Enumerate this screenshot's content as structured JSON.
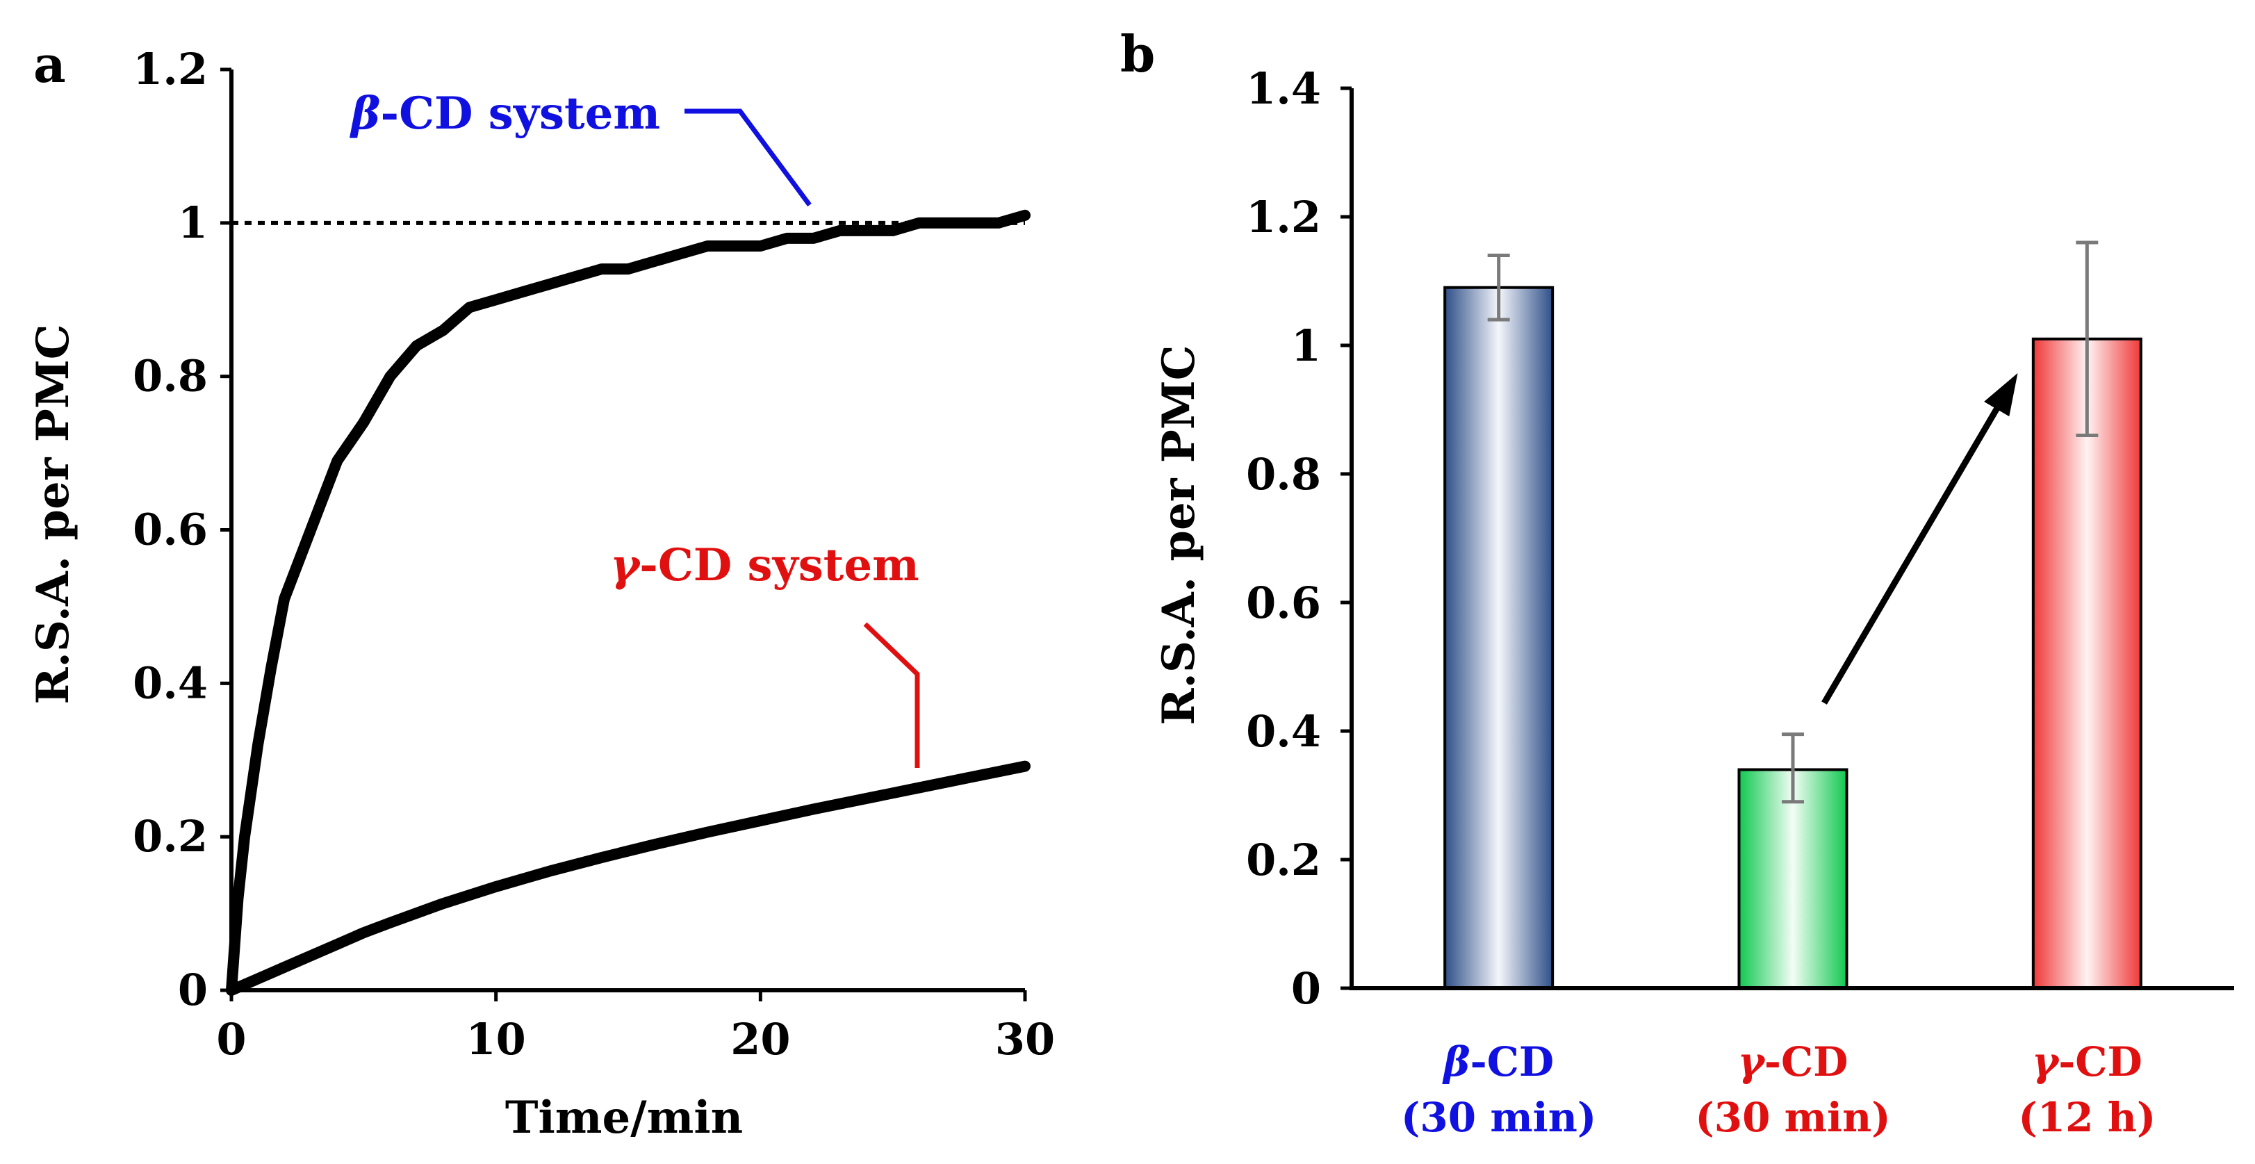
{
  "colors": {
    "blue": "#1010e0",
    "red": "#e01010",
    "black": "#000000",
    "bar_blue": "#2f4f88",
    "bar_green": "#10c850",
    "bar_red": "#f03838",
    "error_bar": "#7a7a7a"
  },
  "chart_data": [
    {
      "type": "line",
      "panel_label": "a",
      "xlabel": "Time/min",
      "ylabel": "R.S.A. per PMC",
      "xlim": [
        0,
        30
      ],
      "ylim": [
        0,
        1.2
      ],
      "x_ticks": [
        "0",
        "10",
        "20",
        "30"
      ],
      "y_ticks": [
        "0",
        "0.2",
        "0.4",
        "0.6",
        "0.8",
        "1",
        "1.2"
      ],
      "reference_line": {
        "y": 1,
        "style": "dotted"
      },
      "series": [
        {
          "name": "β-CD system",
          "label_prefix": "β",
          "label_suffix": "-CD system",
          "x": [
            0,
            0.25,
            0.5,
            1,
            1.5,
            2,
            3,
            4,
            5,
            6,
            7,
            8,
            9,
            10,
            11,
            12,
            13,
            14,
            15,
            16,
            17,
            18,
            19,
            20,
            21,
            22,
            23,
            24,
            25,
            26,
            27,
            28,
            29,
            30
          ],
          "y": [
            0,
            0.12,
            0.2,
            0.32,
            0.42,
            0.51,
            0.6,
            0.69,
            0.74,
            0.8,
            0.84,
            0.86,
            0.89,
            0.9,
            0.91,
            0.92,
            0.93,
            0.94,
            0.94,
            0.95,
            0.96,
            0.97,
            0.97,
            0.97,
            0.98,
            0.98,
            0.99,
            0.99,
            0.99,
            1.0,
            1.0,
            1.0,
            1.0,
            1.01
          ]
        },
        {
          "name": "γ-CD system",
          "label_prefix": "γ",
          "label_suffix": "-CD system",
          "x": [
            0,
            1,
            2,
            3,
            4,
            5,
            6,
            8,
            10,
            12,
            14,
            16,
            18,
            20,
            22,
            24,
            26,
            28,
            30
          ],
          "y": [
            0,
            0.015,
            0.03,
            0.045,
            0.06,
            0.075,
            0.088,
            0.113,
            0.135,
            0.155,
            0.173,
            0.19,
            0.206,
            0.221,
            0.236,
            0.25,
            0.264,
            0.278,
            0.292
          ]
        }
      ]
    },
    {
      "type": "bar",
      "panel_label": "b",
      "ylabel": "R.S.A. per PMC",
      "ylim": [
        0,
        1.4
      ],
      "y_ticks": [
        "0",
        "0.2",
        "0.4",
        "0.6",
        "0.8",
        "1",
        "1.2",
        "1.4"
      ],
      "categories": [
        {
          "name": "β-CD",
          "prefix": "β",
          "suffix": "-CD",
          "time": "(30 min)",
          "value": 1.09,
          "err_low": 1.04,
          "err_high": 1.14
        },
        {
          "name": "γ-CD",
          "prefix": "γ",
          "suffix": "-CD",
          "time": "(30 min)",
          "value": 0.34,
          "err_low": 0.29,
          "err_high": 0.395
        },
        {
          "name": "γ-CD",
          "prefix": "γ",
          "suffix": "-CD",
          "time": "(12 h)",
          "value": 1.01,
          "err_low": 0.86,
          "err_high": 1.16
        }
      ],
      "arrow": {
        "from_category": 1,
        "to_category": 2
      }
    }
  ]
}
